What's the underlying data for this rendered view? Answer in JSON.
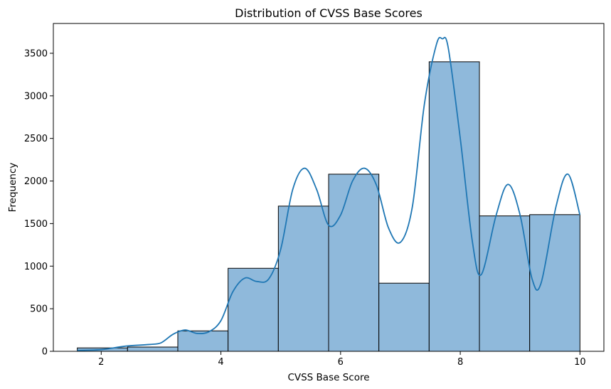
{
  "chart_data": {
    "type": "bar",
    "title": "Distribution of CVSS Base Scores",
    "xlabel": "CVSS Base Score",
    "ylabel": "Frequency",
    "xlim": [
      1.2,
      10.4
    ],
    "ylim": [
      0,
      3850
    ],
    "x_ticks": [
      2,
      4,
      6,
      8,
      10
    ],
    "y_ticks": [
      0,
      500,
      1000,
      1500,
      2000,
      2500,
      3000,
      3500
    ],
    "bin_edges": [
      1.6,
      2.44,
      3.28,
      4.12,
      4.96,
      5.8,
      6.64,
      7.48,
      8.32,
      9.16,
      10.0
    ],
    "values": [
      40,
      50,
      240,
      975,
      1705,
      2080,
      800,
      3400,
      1590,
      1605
    ],
    "kde": {
      "x": [
        1.6,
        2.0,
        2.4,
        2.8,
        3.0,
        3.2,
        3.4,
        3.6,
        3.8,
        4.0,
        4.2,
        4.4,
        4.6,
        4.8,
        5.0,
        5.2,
        5.4,
        5.6,
        5.8,
        6.0,
        6.2,
        6.4,
        6.6,
        6.8,
        7.0,
        7.2,
        7.4,
        7.6,
        7.7,
        7.8,
        8.0,
        8.2,
        8.35,
        8.6,
        8.8,
        9.0,
        9.2,
        9.35,
        9.6,
        9.8,
        10.0
      ],
      "y": [
        10,
        20,
        60,
        80,
        100,
        200,
        250,
        210,
        230,
        360,
        700,
        860,
        820,
        850,
        1200,
        1900,
        2150,
        1900,
        1480,
        1600,
        2000,
        2150,
        1950,
        1450,
        1280,
        1700,
        2900,
        3600,
        3670,
        3560,
        2500,
        1300,
        900,
        1600,
        1960,
        1600,
        850,
        800,
        1700,
        2080,
        1600
      ]
    },
    "colors": {
      "bar_fill": "#8fb9db",
      "bar_edge": "#000000",
      "kde_line": "#1f77b4"
    },
    "grid": false,
    "legend": "none"
  }
}
